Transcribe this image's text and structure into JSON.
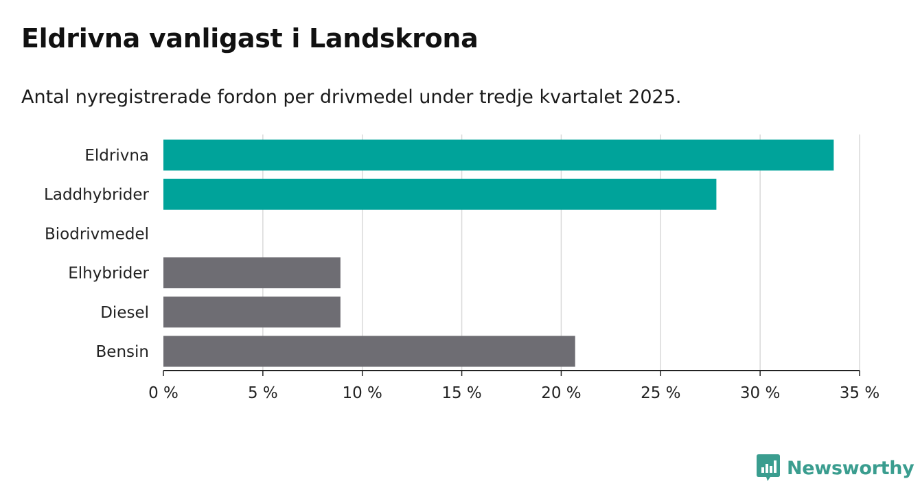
{
  "title": "Eldrivna vanligast i Landskrona",
  "subtitle": "Antal nyregistrerade fordon per drivmedel under tredje kvartalet 2025.",
  "brand": {
    "name": "Newsworthy",
    "color": "#3a9d8f",
    "icon": "bar-chart-speech-bubble-icon"
  },
  "colors": {
    "highlight": "#00a39a",
    "other": "#6e6d73",
    "grid": "#d9d9d9",
    "axis": "#222222"
  },
  "chart_data": {
    "type": "bar",
    "orientation": "horizontal",
    "title": "Eldrivna vanligast i Landskrona",
    "xlabel": "",
    "ylabel": "",
    "xlim": [
      0,
      35
    ],
    "ticks": [
      0,
      5,
      10,
      15,
      20,
      25,
      30,
      35
    ],
    "tick_labels": [
      "0 %",
      "5 %",
      "10 %",
      "15 %",
      "20 %",
      "25 %",
      "30 %",
      "35 %"
    ],
    "grid": true,
    "categories": [
      "Eldrivna",
      "Laddhybrider",
      "Biodrivmedel",
      "Elhybrider",
      "Diesel",
      "Bensin"
    ],
    "values": [
      33.7,
      27.8,
      0,
      8.9,
      8.9,
      20.7
    ],
    "highlight": [
      true,
      true,
      false,
      false,
      false,
      false
    ]
  }
}
